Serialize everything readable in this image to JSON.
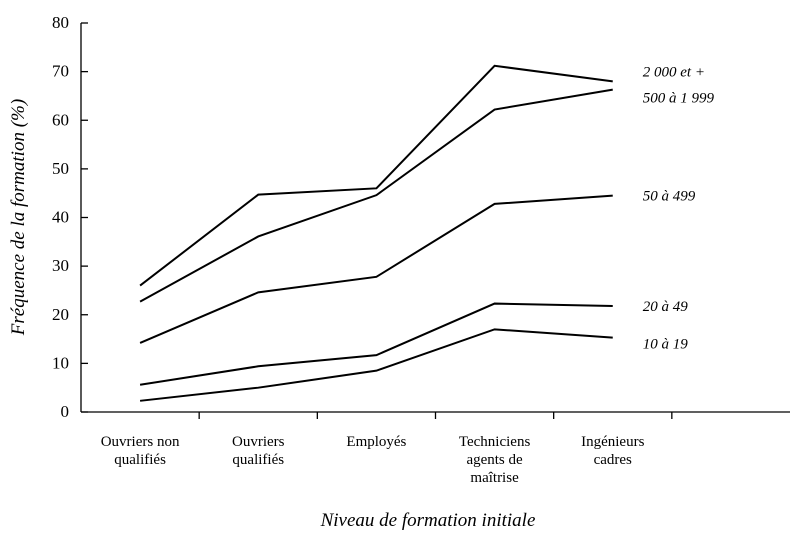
{
  "chart_data": {
    "type": "line",
    "y_label": "Fréquence de la formation (%)",
    "x_label": "Niveau de formation initiale",
    "categories": [
      [
        "Ouvriers non",
        "qualifiés"
      ],
      [
        "Ouvriers",
        "qualifiés"
      ],
      [
        "Employés"
      ],
      [
        "Techniciens",
        "agents de",
        "maîtrise"
      ],
      [
        "Ingénieurs",
        "cadres"
      ],
      null
    ],
    "ylim": [
      0,
      80
    ],
    "yticks": [
      0,
      10,
      20,
      30,
      40,
      50,
      60,
      70,
      80
    ],
    "grid": false,
    "series": [
      {
        "name": "2 000 et +",
        "color": "#000000",
        "values": [
          26,
          44.7,
          46,
          71.2,
          68,
          null
        ]
      },
      {
        "name": "500 à 1 999",
        "color": "#000000",
        "values": [
          22.7,
          36.1,
          44.6,
          62.2,
          66.3,
          null
        ]
      },
      {
        "name": "50 à 499",
        "color": "#000000",
        "values": [
          14.2,
          24.6,
          27.8,
          42.8,
          44.5,
          null
        ]
      },
      {
        "name": "20 à 49",
        "color": "#000000",
        "values": [
          5.6,
          9.4,
          11.7,
          22.3,
          21.8,
          null
        ]
      },
      {
        "name": "10 à 19",
        "color": "#000000",
        "values": [
          2.3,
          5,
          8.5,
          17,
          15.3,
          null
        ]
      }
    ]
  }
}
